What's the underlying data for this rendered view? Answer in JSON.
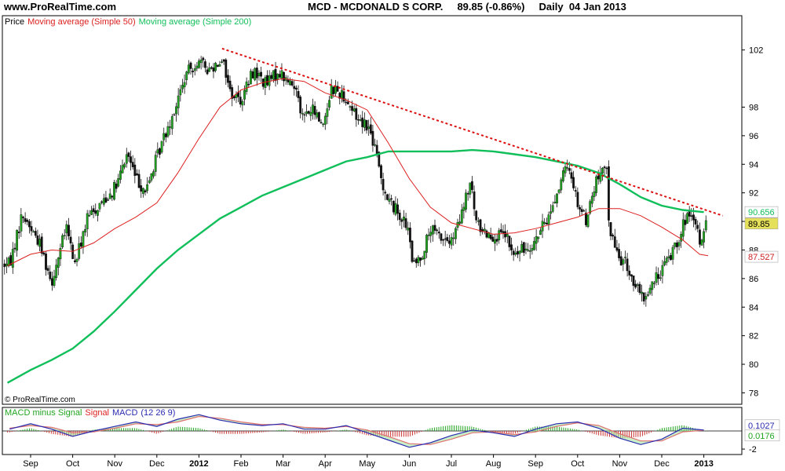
{
  "header": {
    "site": "www.ProRealTime.com",
    "symbol": "MCD - MCDONALD S CORP.",
    "price": "89.85 (-0.86%)",
    "period": "Daily",
    "date": "04 Jan 2013"
  },
  "watermark": "© ProRealTime.com",
  "colors": {
    "up": "#21a521",
    "down": "#111111",
    "ma50": "#dd2020",
    "ma200": "#10bf5a",
    "trend": "#dd1010",
    "macd_hist": "#cc3333",
    "macd_signal": "#e07070",
    "macd_line": "#2a2ab0",
    "diff_fill": "#9be29b"
  },
  "chart_data": [
    {
      "type": "candlestick",
      "legend": [
        {
          "text": "Price",
          "color": "#000000"
        },
        {
          "text": "Moving average (Simple 50)",
          "color": "#dd2020"
        },
        {
          "text": "Moving average (Simple 200)",
          "color": "#10bf5a"
        }
      ],
      "ylim": [
        77.2,
        104.4
      ],
      "yticks": [
        78,
        80,
        82,
        84,
        86,
        88,
        90,
        92,
        94,
        96,
        98,
        102
      ],
      "months": [
        {
          "label": "Sep",
          "pos": 0.0
        },
        {
          "label": "Oct",
          "pos": 1.0
        },
        {
          "label": "Nov",
          "pos": 2.0
        },
        {
          "label": "Dec",
          "pos": 3.0
        },
        {
          "label": "2012",
          "pos": 4.0,
          "bold": true
        },
        {
          "label": "Feb",
          "pos": 5.0
        },
        {
          "label": "Mar",
          "pos": 6.0
        },
        {
          "label": "Apr",
          "pos": 7.0
        },
        {
          "label": "May",
          "pos": 8.0
        },
        {
          "label": "Jun",
          "pos": 9.0
        },
        {
          "label": "Jul",
          "pos": 10.0
        },
        {
          "label": "Aug",
          "pos": 11.0
        },
        {
          "label": "Sep",
          "pos": 12.0
        },
        {
          "label": "Oct",
          "pos": 13.0
        },
        {
          "label": "Nov",
          "pos": 14.0
        },
        {
          "label": "Dec",
          "pos": 15.0
        },
        {
          "label": "2013",
          "pos": 16.0,
          "bold": true
        }
      ],
      "price_path": [
        [
          -0.5,
          87.0
        ],
        [
          -0.2,
          90.5
        ],
        [
          0.2,
          88.6
        ],
        [
          0.5,
          85.8
        ],
        [
          0.85,
          89.6
        ],
        [
          1.05,
          87.0
        ],
        [
          1.35,
          90.2
        ],
        [
          1.7,
          91.4
        ],
        [
          2.05,
          92.5
        ],
        [
          2.3,
          94.8
        ],
        [
          2.5,
          93.0
        ],
        [
          2.75,
          92.1
        ],
        [
          2.9,
          93.6
        ],
        [
          3.2,
          96.2
        ],
        [
          3.45,
          98.1
        ],
        [
          3.7,
          100.3
        ],
        [
          3.95,
          101.2
        ],
        [
          4.25,
          100.6
        ],
        [
          4.55,
          101.5
        ],
        [
          4.75,
          99.0
        ],
        [
          5.0,
          98.5
        ],
        [
          5.3,
          100.6
        ],
        [
          5.6,
          99.6
        ],
        [
          5.9,
          100.5
        ],
        [
          6.1,
          99.8
        ],
        [
          6.35,
          99.2
        ],
        [
          6.45,
          97.3
        ],
        [
          6.7,
          97.8
        ],
        [
          6.95,
          96.8
        ],
        [
          7.15,
          99.4
        ],
        [
          7.45,
          98.8
        ],
        [
          7.75,
          97.3
        ],
        [
          8.0,
          96.8
        ],
        [
          8.15,
          95.5
        ],
        [
          8.35,
          92.8
        ],
        [
          8.5,
          91.5
        ],
        [
          8.75,
          90.6
        ],
        [
          8.95,
          89.6
        ],
        [
          9.1,
          86.8
        ],
        [
          9.3,
          87.7
        ],
        [
          9.5,
          89.4
        ],
        [
          9.75,
          88.9
        ],
        [
          10.0,
          88.5
        ],
        [
          10.2,
          90.0
        ],
        [
          10.45,
          92.7
        ],
        [
          10.6,
          89.8
        ],
        [
          10.85,
          89.2
        ],
        [
          11.1,
          88.9
        ],
        [
          11.3,
          89.0
        ],
        [
          11.45,
          87.6
        ],
        [
          11.7,
          88.0
        ],
        [
          12.0,
          88.7
        ],
        [
          12.3,
          90.3
        ],
        [
          12.5,
          91.9
        ],
        [
          12.7,
          93.6
        ],
        [
          12.85,
          93.3
        ],
        [
          13.0,
          91.3
        ],
        [
          13.2,
          90.1
        ],
        [
          13.45,
          92.9
        ],
        [
          13.7,
          93.7
        ],
        [
          13.75,
          89.5
        ],
        [
          13.95,
          87.6
        ],
        [
          14.15,
          87.0
        ],
        [
          14.35,
          85.6
        ],
        [
          14.55,
          84.5
        ],
        [
          14.7,
          85.2
        ],
        [
          14.95,
          86.4
        ],
        [
          15.2,
          87.6
        ],
        [
          15.4,
          88.9
        ],
        [
          15.6,
          90.4
        ],
        [
          15.8,
          89.6
        ],
        [
          15.95,
          88.4
        ],
        [
          16.05,
          89.85
        ]
      ],
      "ma50": [
        [
          -0.55,
          86.9
        ],
        [
          0.0,
          87.7
        ],
        [
          0.5,
          88.0
        ],
        [
          1.0,
          87.9
        ],
        [
          1.5,
          88.5
        ],
        [
          2.0,
          89.5
        ],
        [
          2.5,
          90.3
        ],
        [
          3.0,
          91.3
        ],
        [
          3.5,
          93.4
        ],
        [
          4.0,
          95.8
        ],
        [
          4.5,
          98.0
        ],
        [
          5.0,
          99.2
        ],
        [
          5.5,
          99.7
        ],
        [
          6.0,
          100.0
        ],
        [
          6.5,
          99.8
        ],
        [
          7.0,
          99.0
        ],
        [
          7.5,
          98.5
        ],
        [
          8.0,
          97.8
        ],
        [
          8.5,
          95.5
        ],
        [
          9.0,
          93.0
        ],
        [
          9.5,
          91.0
        ],
        [
          10.0,
          89.9
        ],
        [
          10.5,
          89.5
        ],
        [
          11.0,
          89.1
        ],
        [
          11.5,
          89.2
        ],
        [
          12.0,
          89.5
        ],
        [
          12.5,
          89.9
        ],
        [
          13.0,
          90.3
        ],
        [
          13.5,
          90.9
        ],
        [
          14.0,
          90.9
        ],
        [
          14.5,
          90.4
        ],
        [
          15.0,
          89.6
        ],
        [
          15.5,
          88.7
        ],
        [
          15.9,
          87.7
        ],
        [
          16.1,
          87.6
        ]
      ],
      "ma200": [
        [
          -0.55,
          78.7
        ],
        [
          0.0,
          79.6
        ],
        [
          0.5,
          80.3
        ],
        [
          1.0,
          81.1
        ],
        [
          1.5,
          82.3
        ],
        [
          2.0,
          83.7
        ],
        [
          2.5,
          85.2
        ],
        [
          3.0,
          86.7
        ],
        [
          3.5,
          88.0
        ],
        [
          4.0,
          89.1
        ],
        [
          4.5,
          90.2
        ],
        [
          5.0,
          91.0
        ],
        [
          5.5,
          91.8
        ],
        [
          6.0,
          92.4
        ],
        [
          6.5,
          93.0
        ],
        [
          7.0,
          93.6
        ],
        [
          7.5,
          94.2
        ],
        [
          8.0,
          94.5
        ],
        [
          8.5,
          94.9
        ],
        [
          9.0,
          94.9
        ],
        [
          9.5,
          94.9
        ],
        [
          10.0,
          94.9
        ],
        [
          10.5,
          95.0
        ],
        [
          11.0,
          94.9
        ],
        [
          11.5,
          94.7
        ],
        [
          12.0,
          94.5
        ],
        [
          12.5,
          94.2
        ],
        [
          13.0,
          93.9
        ],
        [
          13.5,
          93.4
        ],
        [
          14.0,
          92.6
        ],
        [
          14.5,
          91.7
        ],
        [
          15.0,
          91.1
        ],
        [
          15.5,
          90.8
        ],
        [
          16.0,
          90.65
        ]
      ],
      "trendline": [
        [
          4.55,
          102.1
        ],
        [
          16.45,
          90.4
        ]
      ],
      "markers": [
        {
          "label": "90.656",
          "value": 90.656,
          "color": "#10bf5a",
          "bg": "#ffffff"
        },
        {
          "label": "89.85",
          "value": 89.85,
          "color": "#000000",
          "bg": "#e5e05a"
        },
        {
          "label": "87.527",
          "value": 87.527,
          "color": "#cc2222",
          "bg": "#ffffff"
        }
      ]
    },
    {
      "type": "histogram",
      "legend": [
        {
          "text": "MACD minus Signal",
          "color": "#21a521"
        },
        {
          "text": "Signal",
          "color": "#dd2020"
        },
        {
          "text": "MACD",
          "color": "#2a2ab0"
        },
        {
          "text": "(12 26 9)",
          "color": "#2a2ab0"
        }
      ],
      "ylim": [
        -2.6,
        2.6
      ],
      "yticks": [
        {
          "value": -2,
          "label": "-2"
        }
      ],
      "markers": [
        {
          "label": "0.1027",
          "value": 0.1027,
          "color": "#2a2ab0"
        },
        {
          "label": "0.0176",
          "value": 0.0176,
          "color": "#21a521"
        }
      ],
      "macd": [
        [
          -0.5,
          0.2
        ],
        [
          0.0,
          0.8
        ],
        [
          0.5,
          0.2
        ],
        [
          1.0,
          -0.6
        ],
        [
          1.5,
          0.0
        ],
        [
          2.0,
          0.5
        ],
        [
          2.5,
          1.0
        ],
        [
          3.0,
          0.5
        ],
        [
          3.5,
          1.3
        ],
        [
          4.0,
          1.8
        ],
        [
          4.5,
          1.2
        ],
        [
          5.0,
          0.8
        ],
        [
          5.5,
          0.6
        ],
        [
          6.0,
          0.8
        ],
        [
          6.5,
          0.2
        ],
        [
          7.0,
          0.2
        ],
        [
          7.5,
          0.6
        ],
        [
          8.0,
          -0.2
        ],
        [
          8.5,
          -1.0
        ],
        [
          9.0,
          -1.8
        ],
        [
          9.5,
          -1.3
        ],
        [
          10.0,
          -0.5
        ],
        [
          10.5,
          0.1
        ],
        [
          11.0,
          -0.2
        ],
        [
          11.5,
          -0.6
        ],
        [
          12.0,
          0.2
        ],
        [
          12.5,
          0.8
        ],
        [
          13.0,
          1.0
        ],
        [
          13.5,
          0.3
        ],
        [
          14.0,
          -0.8
        ],
        [
          14.5,
          -1.5
        ],
        [
          15.0,
          -0.9
        ],
        [
          15.5,
          0.3
        ],
        [
          16.0,
          0.1
        ]
      ],
      "signal": [
        [
          -0.5,
          0.3
        ],
        [
          0.0,
          0.6
        ],
        [
          0.5,
          0.4
        ],
        [
          1.0,
          -0.2
        ],
        [
          1.5,
          -0.1
        ],
        [
          2.0,
          0.3
        ],
        [
          2.5,
          0.8
        ],
        [
          3.0,
          0.7
        ],
        [
          3.5,
          1.0
        ],
        [
          4.0,
          1.6
        ],
        [
          4.5,
          1.4
        ],
        [
          5.0,
          1.0
        ],
        [
          5.5,
          0.7
        ],
        [
          6.0,
          0.7
        ],
        [
          6.5,
          0.4
        ],
        [
          7.0,
          0.3
        ],
        [
          7.5,
          0.5
        ],
        [
          8.0,
          0.1
        ],
        [
          8.5,
          -0.6
        ],
        [
          9.0,
          -1.4
        ],
        [
          9.5,
          -1.5
        ],
        [
          10.0,
          -0.9
        ],
        [
          10.5,
          -0.2
        ],
        [
          11.0,
          -0.1
        ],
        [
          11.5,
          -0.4
        ],
        [
          12.0,
          -0.1
        ],
        [
          12.5,
          0.5
        ],
        [
          13.0,
          0.9
        ],
        [
          13.5,
          0.6
        ],
        [
          14.0,
          -0.3
        ],
        [
          14.5,
          -1.1
        ],
        [
          15.0,
          -1.1
        ],
        [
          15.5,
          -0.1
        ],
        [
          16.0,
          0.08
        ]
      ]
    }
  ]
}
